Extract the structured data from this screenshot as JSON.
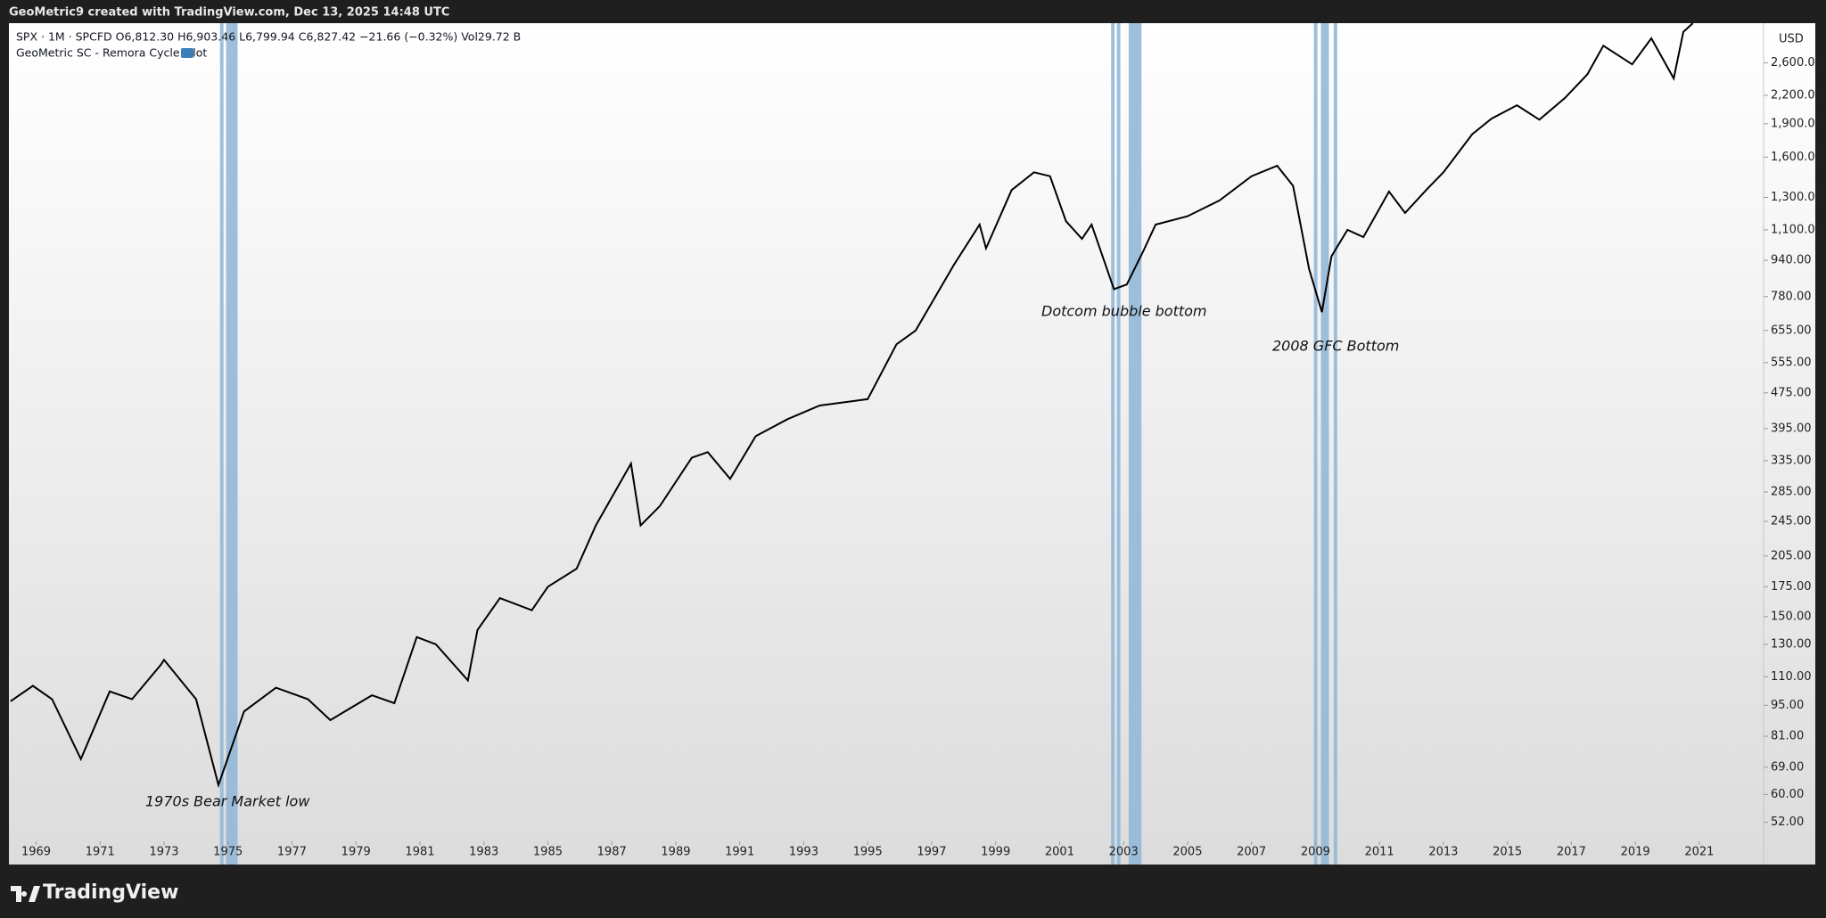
{
  "header": "GeoMetric9 created with TradingView.com, Dec 13, 2025 14:48 UTC",
  "footer": "TradingView",
  "chart_data": {
    "type": "line",
    "symbol_line": "SPX · 1M · SPCFD  O6,812.30  H6,903.46  L6,799.94  C6,827.42  −21.66 (−0.32%)  Vol29.72 B",
    "indicator": "GeoMetric SC - Remora Cycle Pilot",
    "currency": "USD",
    "log_scale": true,
    "color": "#000000",
    "band_color": "#94b8d8",
    "x": [
      1968.2,
      1968.9,
      1969.5,
      1970.4,
      1971.3,
      1972.0,
      1972.9,
      1973.0,
      1974.0,
      1974.7,
      1975.5,
      1976.5,
      1977.5,
      1978.2,
      1979.5,
      1980.2,
      1980.9,
      1981.5,
      1982.5,
      1982.8,
      1983.5,
      1984.5,
      1985.0,
      1985.9,
      1986.5,
      1987.6,
      1987.9,
      1988.5,
      1989.5,
      1990.0,
      1990.7,
      1991.5,
      1992.5,
      1993.5,
      1994.5,
      1995.0,
      1995.9,
      1996.5,
      1997.7,
      1998.5,
      1998.7,
      1999.5,
      2000.2,
      2000.7,
      2001.2,
      2001.7,
      2002.0,
      2002.7,
      2003.1,
      2003.6,
      2004.0,
      2005.0,
      2006.0,
      2007.0,
      2007.8,
      2008.3,
      2008.8,
      2009.2,
      2009.5,
      2010.0,
      2010.5,
      2011.3,
      2011.8,
      2012.5,
      2013.0,
      2013.9,
      2014.5,
      2015.3,
      2016.0,
      2016.8,
      2017.5,
      2018.0,
      2018.9,
      2019.5,
      2020.2,
      2020.5,
      2020.8
    ],
    "values": [
      97,
      105,
      98,
      72,
      102,
      98,
      117,
      120,
      98,
      63,
      92,
      104,
      98,
      88,
      100,
      96,
      135,
      130,
      108,
      140,
      165,
      155,
      175,
      192,
      240,
      330,
      240,
      265,
      340,
      350,
      305,
      380,
      415,
      445,
      455,
      460,
      610,
      655,
      920,
      1130,
      1000,
      1350,
      1480,
      1450,
      1150,
      1050,
      1130,
      810,
      830,
      980,
      1130,
      1180,
      1280,
      1450,
      1530,
      1380,
      900,
      720,
      960,
      1100,
      1060,
      1340,
      1200,
      1360,
      1480,
      1800,
      1950,
      2090,
      1940,
      2170,
      2450,
      2840,
      2580,
      2950,
      2400,
      3050,
      3190
    ],
    "bands": [
      [
        1974.75,
        1974.86
      ],
      [
        1974.94,
        1975.3
      ],
      [
        2002.61,
        2002.72
      ],
      [
        2002.79,
        2002.9
      ],
      [
        2003.16,
        2003.56
      ],
      [
        2008.95,
        2009.06
      ],
      [
        2009.17,
        2009.42
      ],
      [
        2009.57,
        2009.68
      ]
    ],
    "annotations": [
      "1970s Bear Market low",
      "Dotcom bubble bottom",
      "2008 GFC Bottom"
    ],
    "xlim": [
      1968.15,
      2023.01
    ],
    "xticks": [
      1969,
      1971,
      1973,
      1975,
      1977,
      1979,
      1981,
      1983,
      1985,
      1987,
      1989,
      1991,
      1993,
      1995,
      1997,
      1999,
      2001,
      2003,
      2005,
      2007,
      2009,
      2011,
      2013,
      2015,
      2017,
      2019,
      2021
    ],
    "ylim": [
      48,
      3190
    ],
    "yticks": [
      {
        "value": 52,
        "label": "52.00"
      },
      {
        "value": 60,
        "label": "60.00"
      },
      {
        "value": 69,
        "label": "69.00"
      },
      {
        "value": 81,
        "label": "81.00"
      },
      {
        "value": 95,
        "label": "95.00"
      },
      {
        "value": 110,
        "label": "110.00"
      },
      {
        "value": 130,
        "label": "130.00"
      },
      {
        "value": 150,
        "label": "150.00"
      },
      {
        "value": 175,
        "label": "175.00"
      },
      {
        "value": 205,
        "label": "205.00"
      },
      {
        "value": 245,
        "label": "245.00"
      },
      {
        "value": 285,
        "label": "285.00"
      },
      {
        "value": 335,
        "label": "335.00"
      },
      {
        "value": 395,
        "label": "395.00"
      },
      {
        "value": 475,
        "label": "475.00"
      },
      {
        "value": 555,
        "label": "555.00"
      },
      {
        "value": 655,
        "label": "655.00"
      },
      {
        "value": 780,
        "label": "780.00"
      },
      {
        "value": 940,
        "label": "940.00"
      },
      {
        "value": 1100,
        "label": "1,100.00"
      },
      {
        "value": 1300,
        "label": "1,300.00"
      },
      {
        "value": 1600,
        "label": "1,600.00"
      },
      {
        "value": 1900,
        "label": "1,900.00"
      },
      {
        "value": 2200,
        "label": "2,200.00"
      },
      {
        "value": 2600,
        "label": "2,600.00"
      }
    ]
  }
}
